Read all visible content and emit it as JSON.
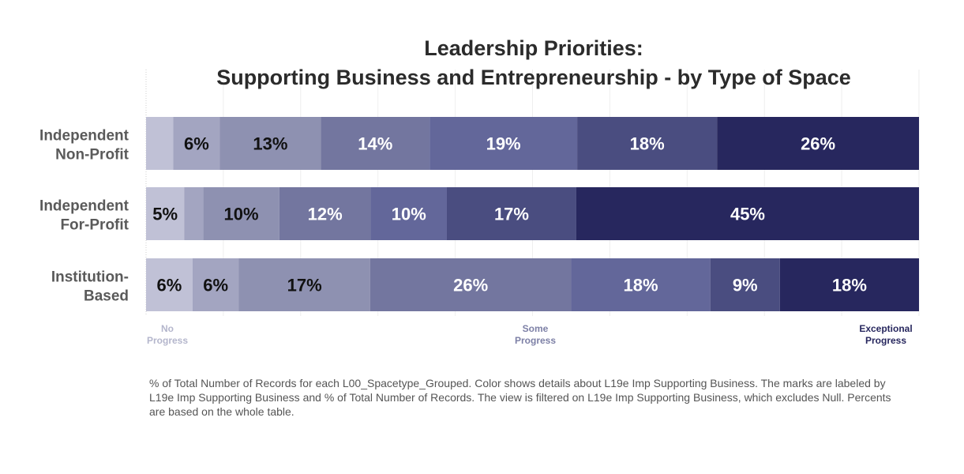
{
  "chart_data": {
    "type": "bar",
    "orientation": "horizontal",
    "stacked": true,
    "title_lines": [
      "Leadership Priorities:",
      "Supporting Business and Entrepreneurship - by Type of Space"
    ],
    "categories": [
      [
        "Independent",
        "Non-Profit"
      ],
      [
        "Independent",
        "For-Profit"
      ],
      [
        "Institution-",
        "Based"
      ]
    ],
    "series": [
      {
        "color": "#c0c1d6",
        "values": [
          3.5,
          5,
          6
        ]
      },
      {
        "color": "#a3a5c1",
        "values": [
          6,
          2.5,
          6
        ]
      },
      {
        "color": "#8e91b1",
        "values": [
          13,
          10,
          17
        ]
      },
      {
        "color": "#73769f",
        "values": [
          14,
          12,
          26
        ]
      },
      {
        "color": "#63679a",
        "values": [
          19,
          10,
          18
        ]
      },
      {
        "color": "#4a4d80",
        "values": [
          18,
          17,
          9
        ]
      },
      {
        "color": "#27275e",
        "values": [
          26,
          45,
          18
        ]
      }
    ],
    "data_labels": [
      [
        "",
        "6%",
        "13%",
        "14%",
        "19%",
        "18%",
        "26%"
      ],
      [
        "5%",
        "",
        "10%",
        "12%",
        "10%",
        "17%",
        "45%"
      ],
      [
        "6%",
        "6%",
        "17%",
        "26%",
        "18%",
        "9%",
        "18%"
      ]
    ],
    "label_colors": [
      [
        "",
        "#111111",
        "#111111",
        "#ffffff",
        "#ffffff",
        "#ffffff",
        "#ffffff"
      ],
      [
        "#111111",
        "",
        "#111111",
        "#ffffff",
        "#ffffff",
        "#ffffff",
        "#ffffff"
      ],
      [
        "#111111",
        "#111111",
        "#111111",
        "#ffffff",
        "#ffffff",
        "#ffffff",
        "#ffffff"
      ]
    ],
    "scale_labels": [
      {
        "lines": [
          "No",
          "Progress"
        ],
        "anchor": "start",
        "color": "#b4b6cc"
      },
      {
        "lines": [
          "Some",
          "Progress"
        ],
        "anchor": "middle",
        "color": "#7d80a6"
      },
      {
        "lines": [
          "Exceptional",
          "Progress"
        ],
        "anchor": "end",
        "color": "#27275e"
      }
    ],
    "xlim": [
      0,
      100
    ],
    "grid": true
  },
  "footnote": "% of Total Number of Records for each L00_Spacetype_Grouped.  Color shows details about L19e Imp Supporting Business.  The marks are labeled by L19e Imp Supporting Business and % of Total Number of Records. The view is filtered on L19e Imp Supporting Business, which excludes Null. Percents are based on the whole table."
}
